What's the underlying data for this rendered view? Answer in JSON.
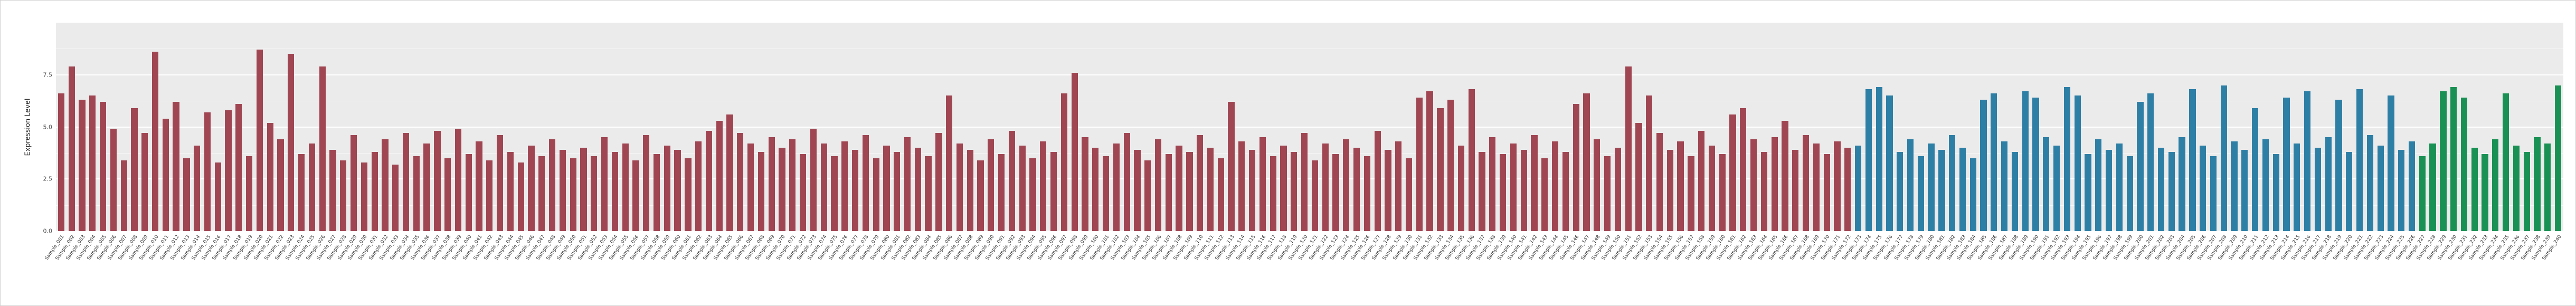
{
  "chart_data": {
    "type": "bar",
    "title": "",
    "xlabel": "",
    "ylabel": "Expression Level",
    "ylim": [
      0,
      10
    ],
    "yticks": [
      0,
      2.5,
      5,
      7.5
    ],
    "ytick_labels": [
      "0.0",
      "2.5",
      "5.0",
      "7.5"
    ],
    "y_minor": [
      1.25,
      3.75,
      6.25,
      8.75
    ],
    "panel_bg": "#ebebeb",
    "grid": "on",
    "legend": "none",
    "groups": [
      {
        "name": "group-1",
        "color": "#a04552",
        "values": [
          6.6,
          7.9,
          6.3,
          6.5,
          6.2,
          4.9,
          3.4,
          5.9,
          4.7,
          8.6,
          5.4,
          6.2,
          3.5,
          4.1,
          5.7,
          3.3,
          5.8,
          6.1,
          3.6,
          8.7,
          5.2,
          4.4,
          8.5,
          3.7,
          4.2,
          7.9,
          3.9,
          3.4,
          4.6,
          3.3,
          3.8,
          4.4,
          3.2,
          4.7,
          3.6,
          4.2,
          4.8,
          3.5,
          4.9,
          3.7,
          4.3,
          3.4,
          4.6,
          3.8,
          3.3,
          4.1,
          3.6,
          4.4,
          3.9,
          3.5,
          4.0,
          3.6,
          4.5,
          3.8,
          4.2,
          3.4,
          4.6,
          3.7,
          4.1,
          3.9,
          3.5,
          4.3,
          4.8,
          5.3,
          5.6,
          4.7,
          4.2,
          3.8,
          4.5,
          4.0,
          4.4,
          3.7,
          4.9,
          4.2,
          3.6,
          4.3,
          3.9,
          4.6,
          3.5,
          4.1,
          3.8,
          4.5,
          4.0,
          3.6,
          4.7,
          6.5,
          4.2,
          3.9,
          3.4,
          4.4,
          3.7,
          4.8,
          4.1,
          3.5,
          4.3,
          3.8,
          6.6,
          7.6,
          4.5,
          4.0,
          3.6,
          4.2,
          4.7,
          3.9,
          3.4,
          4.4,
          3.7,
          4.1,
          3.8,
          4.6,
          4.0,
          3.5,
          6.2,
          4.3,
          3.9,
          4.5,
          3.6,
          4.1,
          3.8,
          4.7,
          3.4,
          4.2,
          3.7,
          4.4,
          4.0,
          3.6,
          4.8,
          3.9,
          4.3,
          3.5,
          6.4,
          6.7,
          5.9,
          6.3,
          4.1,
          6.8,
          3.8,
          4.5,
          3.7,
          4.2,
          3.9,
          4.6,
          3.5,
          4.3,
          3.8,
          6.1,
          6.6,
          4.4,
          3.6,
          4.0,
          7.9,
          5.2,
          6.5,
          4.7,
          3.9,
          4.3,
          3.6,
          4.8,
          4.1,
          3.7,
          5.6,
          5.9,
          4.4,
          3.8,
          4.5,
          5.3,
          3.9,
          4.6,
          4.2,
          3.7,
          4.3,
          4.0
        ]
      },
      {
        "name": "group-2",
        "color": "#2e7fa6",
        "values": [
          4.1,
          6.8,
          6.9,
          6.5,
          3.8,
          4.4,
          3.6,
          4.2,
          3.9,
          4.6,
          4.0,
          3.5,
          6.3,
          6.6,
          4.3,
          3.8,
          6.7,
          6.4,
          4.5,
          4.1,
          6.9,
          6.5,
          3.7,
          4.4,
          3.9,
          4.2,
          3.6,
          6.2,
          6.6,
          4.0,
          3.8,
          4.5,
          6.8,
          4.1,
          3.6,
          7.0,
          4.3,
          3.9,
          5.9,
          4.4,
          3.7,
          6.4,
          4.2,
          6.7,
          4.0,
          4.5,
          6.3,
          3.8,
          6.8,
          4.6,
          4.1,
          6.5,
          3.9,
          4.3
        ]
      },
      {
        "name": "group-3",
        "color": "#1a9154",
        "values": [
          3.6,
          4.2,
          6.7,
          6.9,
          6.4,
          4.0,
          3.7,
          4.4,
          6.6,
          4.1,
          3.8,
          4.5,
          4.2,
          7.0
        ]
      }
    ],
    "labels": [
      "Sample_001",
      "Sample_002",
      "Sample_003",
      "Sample_004",
      "Sample_005",
      "Sample_006",
      "Sample_007",
      "Sample_008",
      "Sample_009",
      "Sample_010",
      "Sample_011",
      "Sample_012",
      "Sample_013",
      "Sample_014",
      "Sample_015",
      "Sample_016",
      "Sample_017",
      "Sample_018",
      "Sample_019",
      "Sample_020",
      "Sample_021",
      "Sample_022",
      "Sample_023",
      "Sample_024",
      "Sample_025",
      "Sample_026",
      "Sample_027",
      "Sample_028",
      "Sample_029",
      "Sample_030",
      "Sample_031",
      "Sample_032",
      "Sample_033",
      "Sample_034",
      "Sample_035",
      "Sample_036",
      "Sample_037",
      "Sample_038",
      "Sample_039",
      "Sample_040",
      "Sample_041",
      "Sample_042",
      "Sample_043",
      "Sample_044",
      "Sample_045",
      "Sample_046",
      "Sample_047",
      "Sample_048",
      "Sample_049",
      "Sample_050",
      "Sample_051",
      "Sample_052",
      "Sample_053",
      "Sample_054",
      "Sample_055",
      "Sample_056",
      "Sample_057",
      "Sample_058",
      "Sample_059",
      "Sample_060",
      "Sample_061",
      "Sample_062",
      "Sample_063",
      "Sample_064",
      "Sample_065",
      "Sample_066",
      "Sample_067",
      "Sample_068",
      "Sample_069",
      "Sample_070",
      "Sample_071",
      "Sample_072",
      "Sample_073",
      "Sample_074",
      "Sample_075",
      "Sample_076",
      "Sample_077",
      "Sample_078",
      "Sample_079",
      "Sample_080",
      "Sample_081",
      "Sample_082",
      "Sample_083",
      "Sample_084",
      "Sample_085",
      "Sample_086",
      "Sample_087",
      "Sample_088",
      "Sample_089",
      "Sample_090",
      "Sample_091",
      "Sample_092",
      "Sample_093",
      "Sample_094",
      "Sample_095",
      "Sample_096",
      "Sample_097",
      "Sample_098",
      "Sample_099",
      "Sample_100",
      "Sample_101",
      "Sample_102",
      "Sample_103",
      "Sample_104",
      "Sample_105",
      "Sample_106",
      "Sample_107",
      "Sample_108",
      "Sample_109",
      "Sample_110",
      "Sample_111",
      "Sample_112",
      "Sample_113",
      "Sample_114",
      "Sample_115",
      "Sample_116",
      "Sample_117",
      "Sample_118",
      "Sample_119",
      "Sample_120",
      "Sample_121",
      "Sample_122",
      "Sample_123",
      "Sample_124",
      "Sample_125",
      "Sample_126",
      "Sample_127",
      "Sample_128",
      "Sample_129",
      "Sample_130",
      "Sample_131",
      "Sample_132",
      "Sample_133",
      "Sample_134",
      "Sample_135",
      "Sample_136",
      "Sample_137",
      "Sample_138",
      "Sample_139",
      "Sample_140",
      "Sample_141",
      "Sample_142",
      "Sample_143",
      "Sample_144",
      "Sample_145",
      "Sample_146",
      "Sample_147",
      "Sample_148",
      "Sample_149",
      "Sample_150",
      "Sample_151",
      "Sample_152",
      "Sample_153",
      "Sample_154",
      "Sample_155",
      "Sample_156",
      "Sample_157",
      "Sample_158",
      "Sample_159",
      "Sample_160",
      "Sample_161",
      "Sample_162",
      "Sample_163",
      "Sample_164",
      "Sample_165",
      "Sample_166",
      "Sample_167",
      "Sample_168",
      "Sample_169",
      "Sample_170",
      "Sample_171",
      "Sample_172",
      "Sample_173",
      "Sample_174",
      "Sample_175",
      "Sample_176",
      "Sample_177",
      "Sample_178",
      "Sample_179",
      "Sample_180",
      "Sample_181",
      "Sample_182",
      "Sample_183",
      "Sample_184",
      "Sample_185",
      "Sample_186",
      "Sample_187",
      "Sample_188",
      "Sample_189",
      "Sample_190",
      "Sample_191",
      "Sample_192",
      "Sample_193",
      "Sample_194",
      "Sample_195",
      "Sample_196",
      "Sample_197",
      "Sample_198",
      "Sample_199",
      "Sample_200",
      "Sample_201",
      "Sample_202",
      "Sample_203",
      "Sample_204",
      "Sample_205",
      "Sample_206",
      "Sample_207",
      "Sample_208",
      "Sample_209",
      "Sample_210",
      "Sample_211",
      "Sample_212",
      "Sample_213",
      "Sample_214",
      "Sample_215",
      "Sample_216",
      "Sample_217",
      "Sample_218",
      "Sample_219",
      "Sample_220",
      "Sample_221",
      "Sample_222",
      "Sample_223",
      "Sample_224",
      "Sample_225",
      "Sample_226",
      "Sample_227",
      "Sample_228",
      "Sample_229",
      "Sample_230",
      "Sample_231",
      "Sample_232",
      "Sample_233",
      "Sample_234",
      "Sample_235",
      "Sample_236",
      "Sample_237",
      "Sample_238",
      "Sample_239",
      "Sample_240"
    ]
  }
}
